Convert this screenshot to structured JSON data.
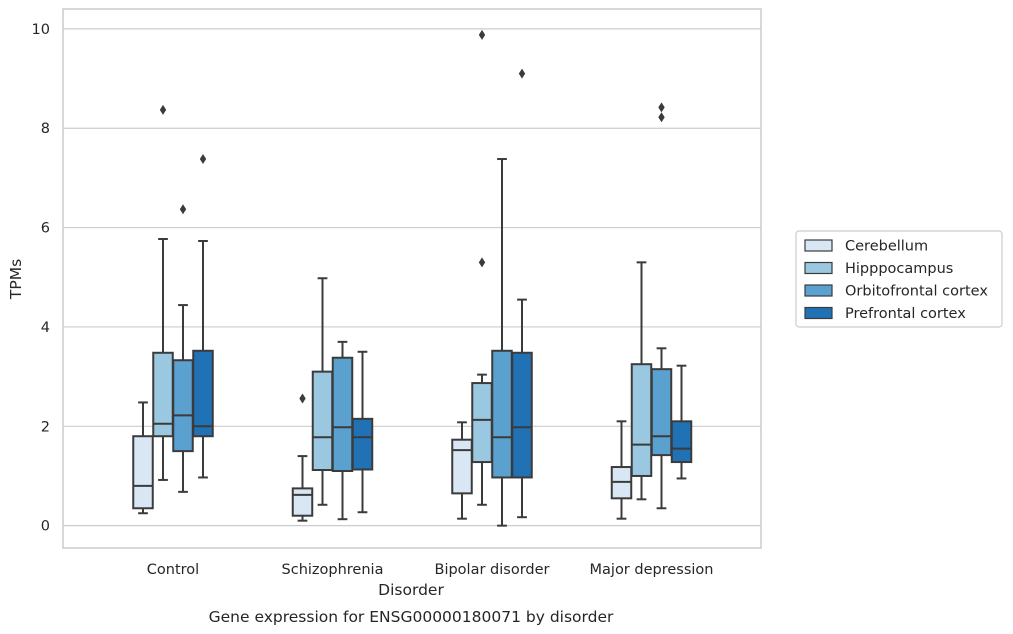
{
  "chart_data": {
    "type": "box",
    "caption": "Gene expression for ENSG00000180071 by disorder",
    "xlabel": "Disorder",
    "ylabel": "TPMs",
    "ylim": [
      -0.45,
      10.4
    ],
    "yticks": [
      0,
      2,
      4,
      6,
      8,
      10
    ],
    "grid": true,
    "legend_position": "right",
    "categories": [
      "Control",
      "Schizophrenia",
      "Bipolar disorder",
      "Major depression"
    ],
    "series": [
      {
        "name": "Cerebellum",
        "color": "#d9e7f5",
        "boxes": [
          {
            "whisker_low": 0.25,
            "q1": 0.35,
            "median": 0.8,
            "q3": 1.8,
            "whisker_high": 2.48,
            "outliers": []
          },
          {
            "whisker_low": 0.1,
            "q1": 0.2,
            "median": 0.62,
            "q3": 0.75,
            "whisker_high": 1.4,
            "outliers": [
              2.56
            ]
          },
          {
            "whisker_low": 0.14,
            "q1": 0.65,
            "median": 1.52,
            "q3": 1.73,
            "whisker_high": 2.08,
            "outliers": []
          },
          {
            "whisker_low": 0.14,
            "q1": 0.55,
            "median": 0.88,
            "q3": 1.18,
            "whisker_high": 2.1,
            "outliers": []
          }
        ]
      },
      {
        "name": "Hipppocampus",
        "color": "#9ac8e0",
        "boxes": [
          {
            "whisker_low": 0.92,
            "q1": 1.8,
            "median": 2.05,
            "q3": 3.48,
            "whisker_high": 5.77,
            "outliers": [
              8.37
            ]
          },
          {
            "whisker_low": 0.42,
            "q1": 1.12,
            "median": 1.78,
            "q3": 3.1,
            "whisker_high": 4.98,
            "outliers": []
          },
          {
            "whisker_low": 0.42,
            "q1": 1.28,
            "median": 2.13,
            "q3": 2.87,
            "whisker_high": 3.04,
            "outliers": [
              5.3,
              9.88
            ]
          },
          {
            "whisker_low": 0.53,
            "q1": 1.0,
            "median": 1.63,
            "q3": 3.25,
            "whisker_high": 5.3,
            "outliers": []
          }
        ]
      },
      {
        "name": "Orbitofrontal cortex",
        "color": "#5aa1cf",
        "boxes": [
          {
            "whisker_low": 0.68,
            "q1": 1.5,
            "median": 2.22,
            "q3": 3.33,
            "whisker_high": 4.44,
            "outliers": [
              6.37
            ]
          },
          {
            "whisker_low": 0.13,
            "q1": 1.1,
            "median": 1.98,
            "q3": 3.38,
            "whisker_high": 3.7,
            "outliers": []
          },
          {
            "whisker_low": 0.0,
            "q1": 0.97,
            "median": 1.78,
            "q3": 3.52,
            "whisker_high": 7.38,
            "outliers": []
          },
          {
            "whisker_low": 0.35,
            "q1": 1.42,
            "median": 1.8,
            "q3": 3.15,
            "whisker_high": 3.57,
            "outliers": [
              8.22,
              8.42
            ]
          }
        ]
      },
      {
        "name": "Prefrontal cortex",
        "color": "#2171b5",
        "boxes": [
          {
            "whisker_low": 0.97,
            "q1": 1.8,
            "median": 2.0,
            "q3": 3.52,
            "whisker_high": 5.73,
            "outliers": [
              7.38
            ]
          },
          {
            "whisker_low": 0.27,
            "q1": 1.13,
            "median": 1.78,
            "q3": 2.15,
            "whisker_high": 3.5,
            "outliers": []
          },
          {
            "whisker_low": 0.17,
            "q1": 0.97,
            "median": 1.98,
            "q3": 3.48,
            "whisker_high": 4.55,
            "outliers": [
              9.1
            ]
          },
          {
            "whisker_low": 0.95,
            "q1": 1.28,
            "median": 1.55,
            "q3": 2.1,
            "whisker_high": 3.22,
            "outliers": []
          }
        ]
      }
    ],
    "colors": {
      "box_edge": "#3b3b3b",
      "grid": "#cccccc",
      "spine": "#cccccc",
      "text": "#262626"
    }
  }
}
